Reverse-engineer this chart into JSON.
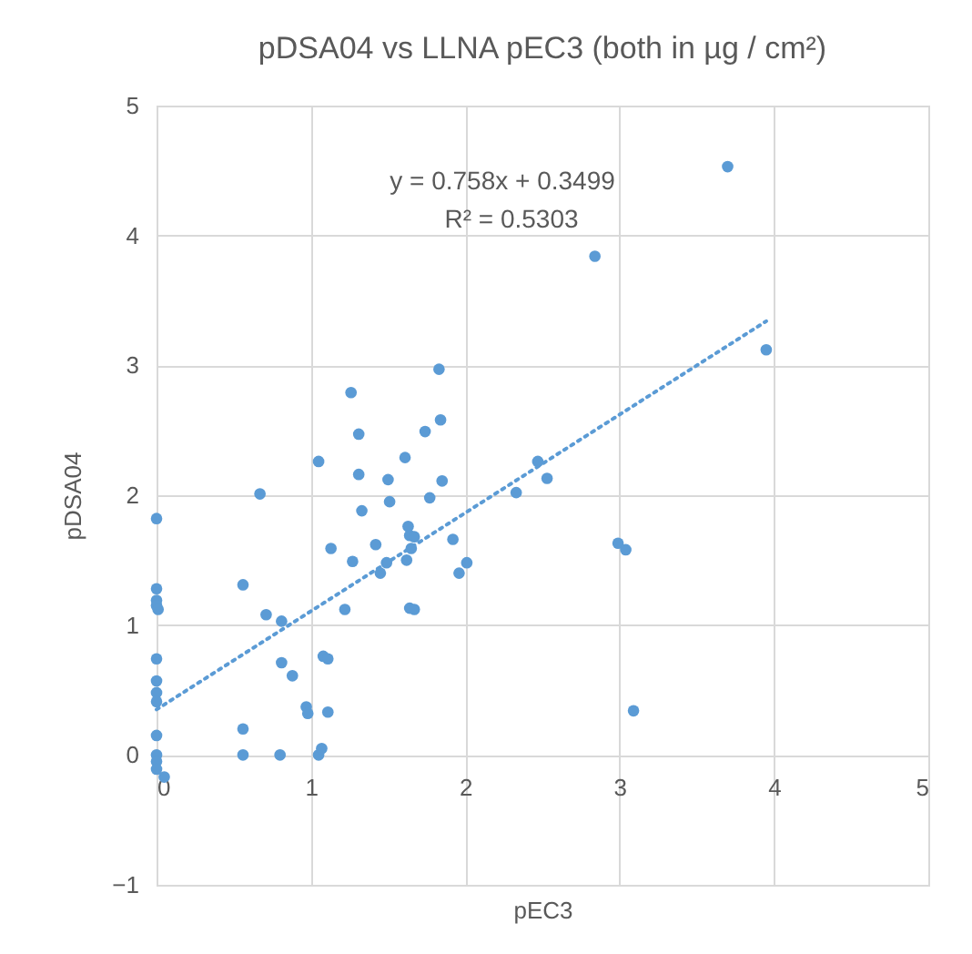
{
  "chart_data": {
    "type": "scatter",
    "title": "pDSA04 vs LLNA pEC3 (both in µg / cm²)",
    "xlabel": "pEC3",
    "ylabel": "pDSA04",
    "annotations": [
      "y = 0.758x + 0.3499",
      "R² = 0.5303"
    ],
    "xlim": [
      0,
      5
    ],
    "xticks": [
      0,
      1,
      2,
      3,
      4,
      5
    ],
    "ylim": [
      -1,
      5
    ],
    "yticks": [
      -1,
      0,
      1,
      2,
      3,
      4,
      5
    ],
    "grid": true,
    "marker": "circle",
    "series": [
      {
        "color": "#5b9bd5",
        "x": [
          0,
          0,
          0,
          0,
          0.01,
          0,
          0,
          0,
          0,
          0,
          0,
          0,
          0,
          0.05,
          0.56,
          0.56,
          0.56,
          0.67,
          0.71,
          0.81,
          0.81,
          0.88,
          0.97,
          0.98,
          0.8,
          1.05,
          1.07,
          1.05,
          1.08,
          1.11,
          1.11,
          1.13,
          1.22,
          1.26,
          1.27,
          1.31,
          1.31,
          1.33,
          1.42,
          1.45,
          1.49,
          1.5,
          1.51,
          1.61,
          1.62,
          1.63,
          1.64,
          1.67,
          1.65,
          1.64,
          1.67,
          1.74,
          1.77,
          1.83,
          1.84,
          1.85,
          1.92,
          1.96,
          2.01,
          2.33,
          2.47,
          2.53,
          3.7,
          2.84,
          3.95,
          2.99,
          3.04,
          3.09
        ],
        "values": [
          1.82,
          1.28,
          1.19,
          1.15,
          1.12,
          0.74,
          0.57,
          0.48,
          0.41,
          0.15,
          0,
          -0.05,
          -0.11,
          -0.17,
          1.31,
          0.2,
          0,
          2.01,
          1.08,
          1.03,
          0.71,
          0.61,
          0.37,
          0.32,
          0,
          0,
          0.05,
          2.26,
          0.76,
          0.74,
          0.33,
          1.59,
          1.12,
          2.79,
          1.49,
          2.47,
          2.16,
          1.88,
          1.62,
          1.4,
          1.48,
          2.12,
          1.95,
          2.29,
          1.5,
          1.76,
          1.69,
          1.68,
          1.59,
          1.13,
          1.12,
          2.49,
          1.98,
          2.97,
          2.58,
          2.11,
          1.66,
          1.4,
          1.48,
          2.02,
          2.26,
          2.13,
          4.53,
          3.84,
          3.12,
          1.63,
          1.58,
          0.34
        ]
      },
      {
        "type": "line",
        "color": "#5b9bd5",
        "marker": "none",
        "line_style": "dotted",
        "x": [
          0,
          3.95
        ],
        "values": [
          0.35,
          3.34
        ]
      }
    ]
  }
}
